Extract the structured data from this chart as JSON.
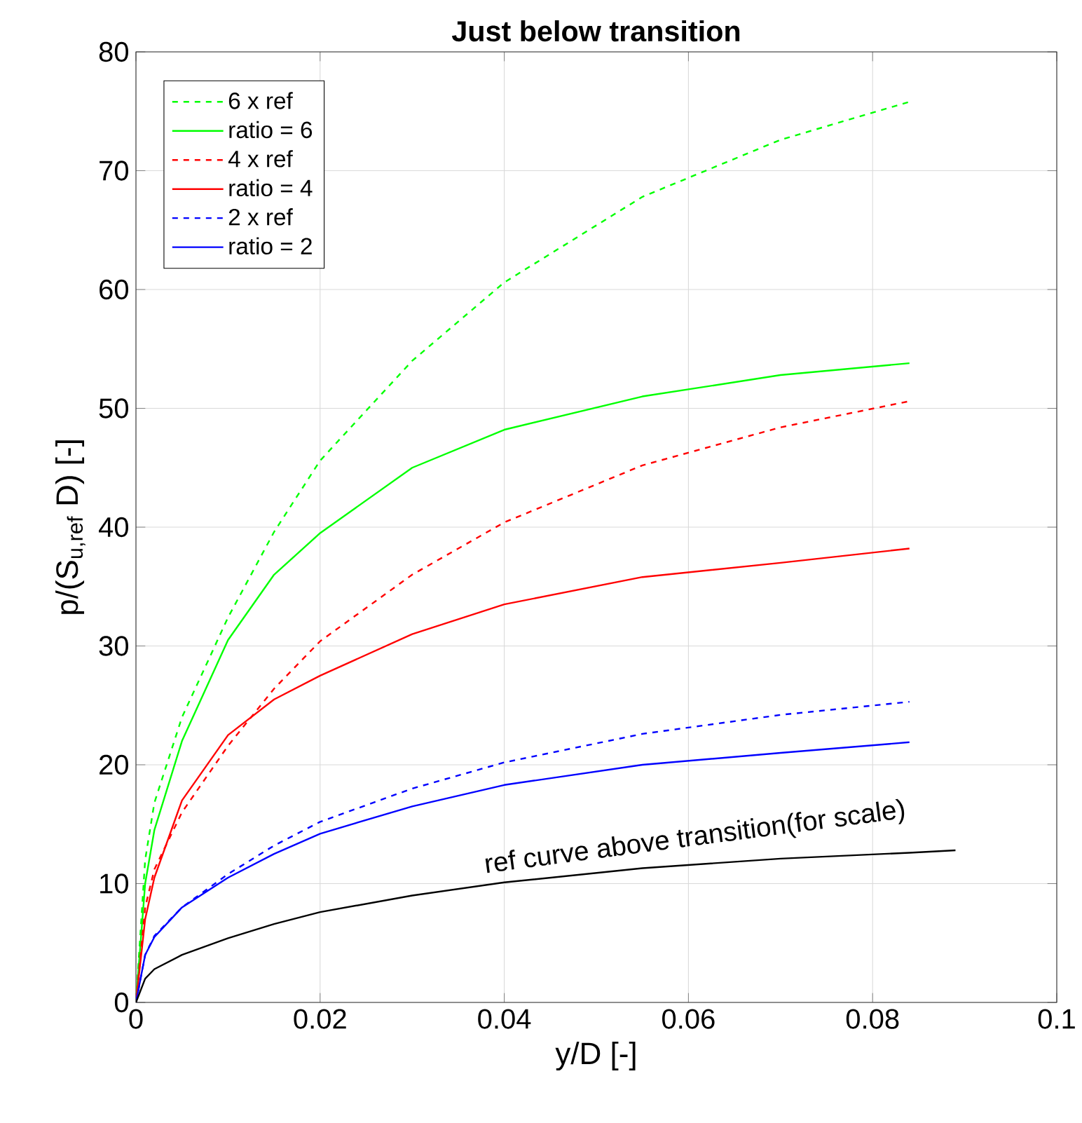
{
  "chart_data": {
    "type": "line",
    "title": "Just below transition",
    "xlabel": "y/D [-]",
    "ylabel": "p/(S$_{u,ref}$ D) [-]",
    "x": [
      0,
      0.001,
      0.002,
      0.005,
      0.01,
      0.015,
      0.02,
      0.03,
      0.04,
      0.055,
      0.07,
      0.084
    ],
    "series": [
      {
        "name": "6 x ref",
        "color": "#00ff00",
        "line_style": "dashed",
        "values": [
          0,
          12,
          16.8,
          24,
          32.4,
          39.6,
          45.6,
          54,
          60.6,
          67.8,
          72.6,
          75.8
        ]
      },
      {
        "name": "ratio = 6",
        "color": "#00ff00",
        "line_style": "solid",
        "values": [
          0,
          10,
          14.5,
          22,
          30.5,
          36,
          39.5,
          45,
          48.2,
          51,
          52.8,
          53.8
        ]
      },
      {
        "name": "4 x ref",
        "color": "#ff0000",
        "line_style": "dashed",
        "values": [
          0,
          8,
          11.2,
          16,
          21.6,
          26.4,
          30.4,
          36,
          40.4,
          45.2,
          48.4,
          50.6
        ]
      },
      {
        "name": "ratio = 4",
        "color": "#ff0000",
        "line_style": "solid",
        "values": [
          0,
          7,
          10.5,
          17,
          22.5,
          25.5,
          27.5,
          31,
          33.5,
          35.8,
          37,
          38.2
        ]
      },
      {
        "name": "2 x ref",
        "color": "#0000ff",
        "line_style": "dashed",
        "values": [
          0,
          4,
          5.6,
          8,
          10.8,
          13.2,
          15.2,
          18,
          20.2,
          22.6,
          24.2,
          25.3
        ]
      },
      {
        "name": "ratio = 2",
        "color": "#0000ff",
        "line_style": "solid",
        "values": [
          0,
          4,
          5.5,
          8,
          10.5,
          12.5,
          14.2,
          16.5,
          18.3,
          20,
          21,
          21.9
        ]
      },
      {
        "color": "#000000",
        "line_style": "solid",
        "x": [
          0,
          0.001,
          0.002,
          0.005,
          0.01,
          0.015,
          0.02,
          0.03,
          0.04,
          0.055,
          0.07,
          0.084,
          0.089
        ],
        "values": [
          0,
          2,
          2.8,
          4,
          5.4,
          6.6,
          7.6,
          9,
          10.1,
          11.3,
          12.1,
          12.6,
          12.8
        ]
      }
    ],
    "annotations": [
      {
        "text": "ref curve above transition(for scale)",
        "x": 0.061,
        "y": 12.2
      }
    ],
    "xlim": [
      0,
      0.1
    ],
    "ylim": [
      0,
      80
    ],
    "xticks": [
      0,
      0.02,
      0.04,
      0.06,
      0.08,
      0.1
    ],
    "yticks": [
      0,
      10,
      20,
      30,
      40,
      50,
      60,
      70,
      80
    ],
    "grid": true,
    "legend": "top left"
  }
}
